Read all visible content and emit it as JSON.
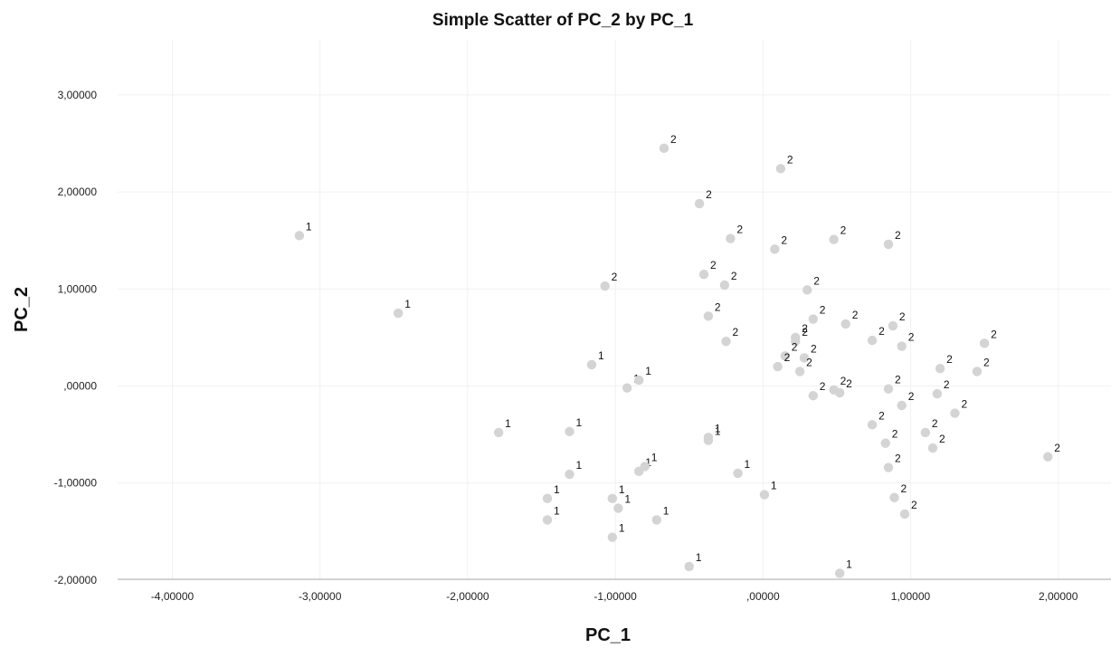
{
  "chart_data": {
    "type": "scatter",
    "title": "Simple Scatter of PC_2 by PC_1",
    "xlabel": "PC_1",
    "ylabel": "PC_2",
    "xlim": [
      -4.3,
      2.3
    ],
    "ylim": [
      -2.0,
      3.4
    ],
    "xticks": [
      -4,
      -3,
      -2,
      -1,
      0,
      1,
      2
    ],
    "xtick_labels": [
      "-4,00000",
      "-3,00000",
      "-2,00000",
      "-1,00000",
      ",00000",
      "1,00000",
      "2,00000"
    ],
    "yticks": [
      -2,
      -1,
      0,
      1,
      2,
      3
    ],
    "ytick_labels": [
      "-2,00000",
      "-1,00000",
      ",00000",
      "1,00000",
      "2,00000",
      "3,00000"
    ],
    "grid": true,
    "marker_color": "#d4d4d4",
    "points": [
      {
        "x": -3.14,
        "y": 1.55,
        "label": "1"
      },
      {
        "x": -2.47,
        "y": 0.75,
        "label": "1"
      },
      {
        "x": -1.79,
        "y": -0.48,
        "label": "1"
      },
      {
        "x": -1.46,
        "y": -1.16,
        "label": "1"
      },
      {
        "x": -1.46,
        "y": -1.38,
        "label": "1"
      },
      {
        "x": -1.31,
        "y": -0.47,
        "label": "1"
      },
      {
        "x": -1.31,
        "y": -0.91,
        "label": "1"
      },
      {
        "x": -1.16,
        "y": 0.22,
        "label": "1"
      },
      {
        "x": -1.02,
        "y": -1.16,
        "label": "1"
      },
      {
        "x": -1.02,
        "y": -1.56,
        "label": "1"
      },
      {
        "x": -0.98,
        "y": -1.26,
        "label": "1"
      },
      {
        "x": -0.92,
        "y": -0.02,
        "label": "1"
      },
      {
        "x": -0.84,
        "y": 0.06,
        "label": "1"
      },
      {
        "x": -0.84,
        "y": -0.88,
        "label": "1"
      },
      {
        "x": -0.8,
        "y": -0.83,
        "label": "1"
      },
      {
        "x": -0.72,
        "y": -1.38,
        "label": "1"
      },
      {
        "x": -0.5,
        "y": -1.86,
        "label": "1"
      },
      {
        "x": -0.37,
        "y": -0.53,
        "label": "1"
      },
      {
        "x": -0.37,
        "y": -0.56,
        "label": "1"
      },
      {
        "x": -0.17,
        "y": -0.9,
        "label": "1"
      },
      {
        "x": 0.01,
        "y": -1.12,
        "label": "1"
      },
      {
        "x": 0.52,
        "y": -1.93,
        "label": "1"
      },
      {
        "x": -0.67,
        "y": 2.45,
        "label": "2"
      },
      {
        "x": 0.12,
        "y": 2.24,
        "label": "2"
      },
      {
        "x": -0.43,
        "y": 1.88,
        "label": "2"
      },
      {
        "x": -0.22,
        "y": 1.52,
        "label": "2"
      },
      {
        "x": 0.08,
        "y": 1.41,
        "label": "2"
      },
      {
        "x": 0.48,
        "y": 1.51,
        "label": "2"
      },
      {
        "x": 0.85,
        "y": 1.46,
        "label": "2"
      },
      {
        "x": -1.07,
        "y": 1.03,
        "label": "2"
      },
      {
        "x": -0.4,
        "y": 1.15,
        "label": "2"
      },
      {
        "x": -0.26,
        "y": 1.04,
        "label": "2"
      },
      {
        "x": 0.3,
        "y": 0.99,
        "label": "2"
      },
      {
        "x": -0.37,
        "y": 0.72,
        "label": "2"
      },
      {
        "x": -0.25,
        "y": 0.46,
        "label": "2"
      },
      {
        "x": 0.34,
        "y": 0.69,
        "label": "2"
      },
      {
        "x": 0.56,
        "y": 0.64,
        "label": "2"
      },
      {
        "x": 0.22,
        "y": 0.5,
        "label": "2"
      },
      {
        "x": 0.22,
        "y": 0.46,
        "label": "2"
      },
      {
        "x": 0.15,
        "y": 0.31,
        "label": "2"
      },
      {
        "x": 0.28,
        "y": 0.29,
        "label": "2"
      },
      {
        "x": 0.1,
        "y": 0.2,
        "label": "2"
      },
      {
        "x": 0.25,
        "y": 0.15,
        "label": "2"
      },
      {
        "x": 0.34,
        "y": -0.1,
        "label": "2"
      },
      {
        "x": 0.48,
        "y": -0.04,
        "label": "2"
      },
      {
        "x": 0.52,
        "y": -0.07,
        "label": "2"
      },
      {
        "x": 0.74,
        "y": 0.47,
        "label": "2"
      },
      {
        "x": 0.88,
        "y": 0.62,
        "label": "2"
      },
      {
        "x": 0.94,
        "y": 0.41,
        "label": "2"
      },
      {
        "x": 0.85,
        "y": -0.03,
        "label": "2"
      },
      {
        "x": 0.94,
        "y": -0.2,
        "label": "2"
      },
      {
        "x": 0.74,
        "y": -0.4,
        "label": "2"
      },
      {
        "x": 0.83,
        "y": -0.59,
        "label": "2"
      },
      {
        "x": 0.85,
        "y": -0.84,
        "label": "2"
      },
      {
        "x": 0.89,
        "y": -1.15,
        "label": "2"
      },
      {
        "x": 0.96,
        "y": -1.32,
        "label": "2"
      },
      {
        "x": 1.2,
        "y": 0.18,
        "label": "2"
      },
      {
        "x": 1.18,
        "y": -0.08,
        "label": "2"
      },
      {
        "x": 1.1,
        "y": -0.48,
        "label": "2"
      },
      {
        "x": 1.15,
        "y": -0.64,
        "label": "2"
      },
      {
        "x": 1.3,
        "y": -0.28,
        "label": "2"
      },
      {
        "x": 1.45,
        "y": 0.15,
        "label": "2"
      },
      {
        "x": 1.5,
        "y": 0.44,
        "label": "2"
      },
      {
        "x": 1.93,
        "y": -0.73,
        "label": "2"
      }
    ]
  }
}
